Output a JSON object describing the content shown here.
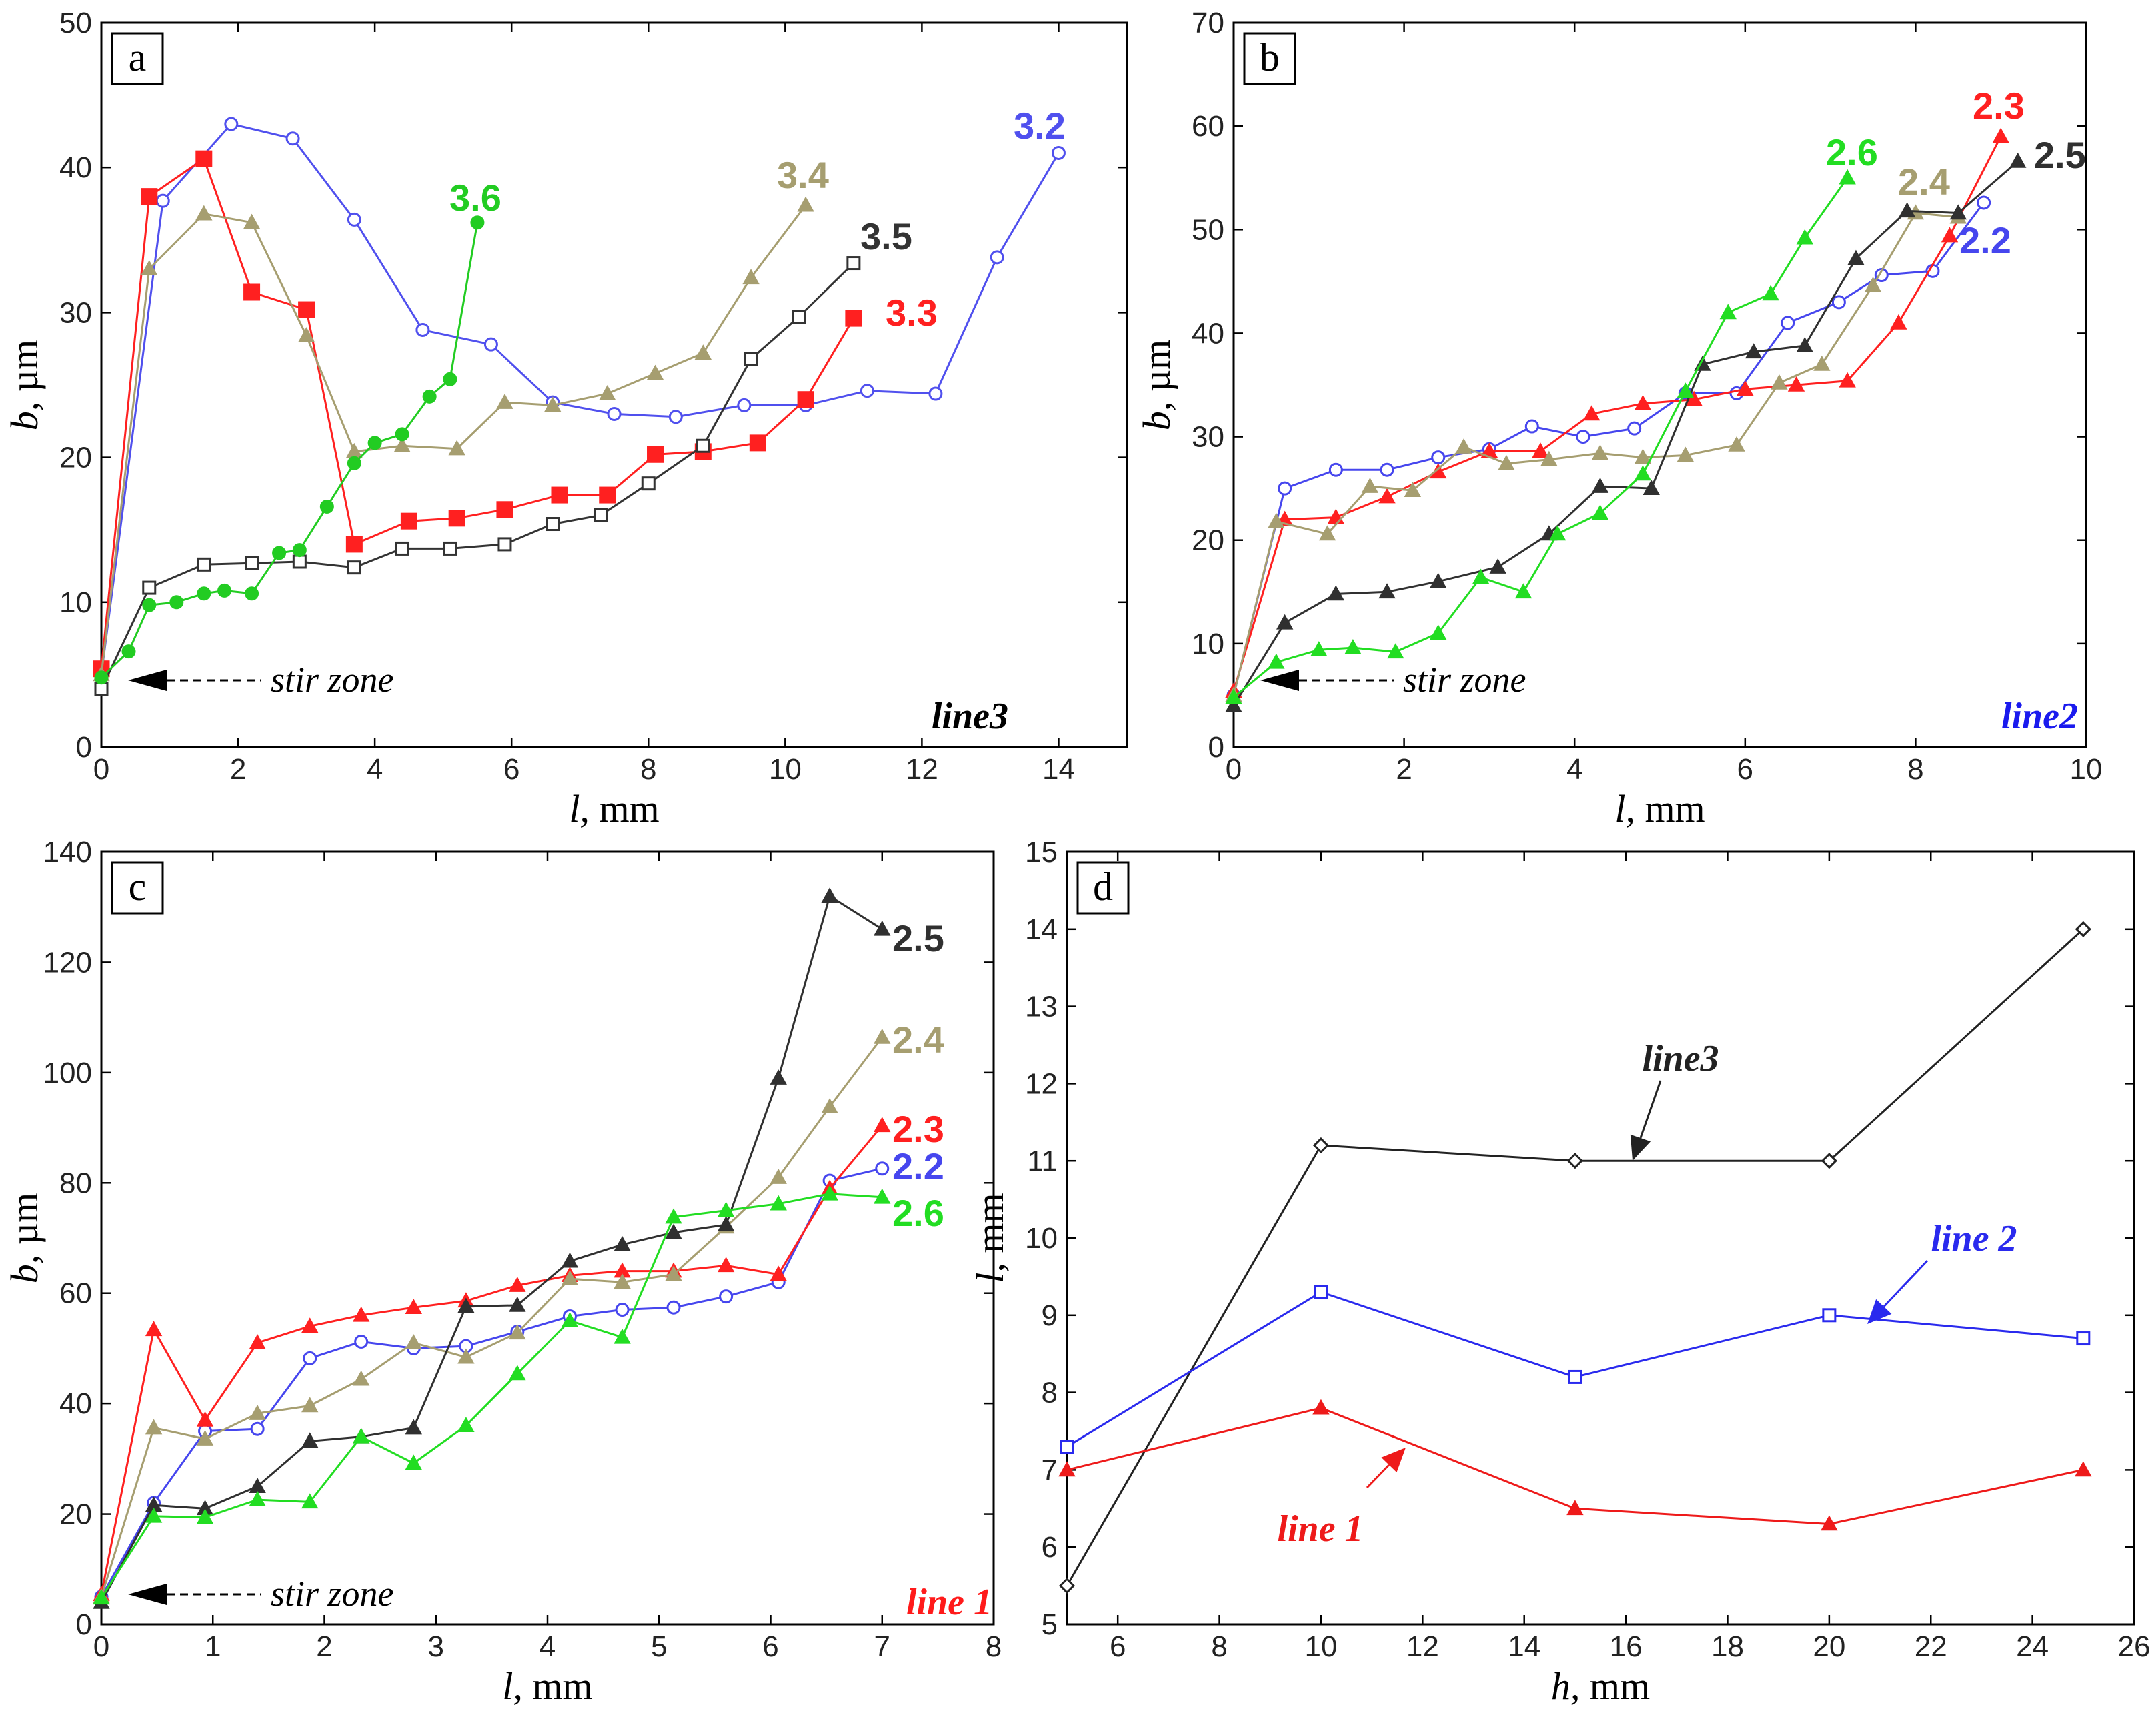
{
  "chart_data": [
    {
      "id": "a",
      "type": "line",
      "panel_letter": "a",
      "xlabel_var": "l,",
      "xlabel_unit": " mm",
      "ylabel_var": "b,",
      "ylabel_unit": " µm",
      "xlim": [
        0,
        15
      ],
      "ylim": [
        0,
        50
      ],
      "xticks": [
        0,
        2,
        4,
        6,
        8,
        10,
        12,
        14
      ],
      "yticks": [
        0,
        10,
        20,
        30,
        40,
        50
      ],
      "line_label": "line3",
      "line_label_color": "#000000",
      "annotation": "stir zone",
      "series": [
        {
          "name": "3.2",
          "color": "#5050ee",
          "marker": "circle-open",
          "x": [
            0,
            0.9,
            1.9,
            2.8,
            3.7,
            4.7,
            5.7,
            6.6,
            7.5,
            8.4,
            9.4,
            10.3,
            11.2,
            12.2,
            13.1,
            14.0
          ],
          "y": [
            5,
            37.7,
            43,
            42,
            36.4,
            28.8,
            27.8,
            23.8,
            23,
            22.8,
            23.6,
            23.6,
            24.6,
            24.4,
            33.8,
            41
          ]
        },
        {
          "name": "3.3",
          "color": "#ff2020",
          "marker": "square-filled",
          "x": [
            0,
            0.7,
            1.5,
            2.2,
            3.0,
            3.7,
            4.5,
            5.2,
            5.9,
            6.7,
            7.4,
            8.1,
            8.8,
            9.6,
            10.3,
            11.0
          ],
          "y": [
            5.4,
            38,
            40.6,
            31.4,
            30.2,
            14,
            15.6,
            15.8,
            16.4,
            17.4,
            17.4,
            20.2,
            20.4,
            21,
            24,
            29.6
          ]
        },
        {
          "name": "3.4",
          "color": "#a69e70",
          "marker": "triangle-filled",
          "x": [
            0,
            0.7,
            1.5,
            2.2,
            3.0,
            3.7,
            4.4,
            5.2,
            5.9,
            6.6,
            7.4,
            8.1,
            8.8,
            9.5,
            10.3
          ],
          "y": [
            5,
            33,
            36.8,
            36.2,
            28.4,
            20.4,
            20.8,
            20.6,
            23.8,
            23.6,
            24.4,
            25.8,
            27.2,
            32.4,
            37.4
          ]
        },
        {
          "name": "3.5",
          "color": "#333333",
          "marker": "square-open",
          "x": [
            0,
            0.7,
            1.5,
            2.2,
            2.9,
            3.7,
            4.4,
            5.1,
            5.9,
            6.6,
            7.3,
            8.0,
            8.8,
            9.5,
            10.2,
            11.0
          ],
          "y": [
            4,
            11,
            12.6,
            12.7,
            12.8,
            12.4,
            13.7,
            13.7,
            14,
            15.4,
            16,
            18.2,
            20.8,
            26.8,
            29.7,
            33.4
          ]
        },
        {
          "name": "3.6",
          "color": "#22cc22",
          "marker": "circle-filled",
          "x": [
            0,
            0.4,
            0.7,
            1.1,
            1.5,
            1.8,
            2.2,
            2.6,
            2.9,
            3.3,
            3.7,
            4.0,
            4.4,
            4.8,
            5.1,
            5.5
          ],
          "y": [
            4.8,
            6.6,
            9.8,
            10,
            10.6,
            10.8,
            10.6,
            13.4,
            13.6,
            16.6,
            19.6,
            21,
            21.6,
            24.2,
            25.4,
            36.2
          ]
        }
      ]
    },
    {
      "id": "b",
      "type": "line",
      "panel_letter": "b",
      "xlabel_var": "l,",
      "xlabel_unit": " mm",
      "ylabel_var": "b,",
      "ylabel_unit": " µm",
      "xlim": [
        0,
        10
      ],
      "ylim": [
        0,
        70
      ],
      "xticks": [
        0,
        2,
        4,
        6,
        8,
        10
      ],
      "yticks": [
        0,
        10,
        20,
        30,
        40,
        50,
        60,
        70
      ],
      "line_label": "line2",
      "line_label_color": "#1a1aee",
      "annotation": "stir zone",
      "series": [
        {
          "name": "2.2",
          "color": "#4646ee",
          "marker": "circle-open",
          "x": [
            0,
            0.6,
            1.2,
            1.8,
            2.4,
            3.0,
            3.5,
            4.1,
            4.7,
            5.3,
            5.9,
            6.5,
            7.1,
            7.6,
            8.2,
            8.8
          ],
          "y": [
            5,
            25,
            26.8,
            26.8,
            28,
            28.8,
            31,
            30,
            30.8,
            34.2,
            34.2,
            41,
            43,
            45.6,
            46,
            52.6
          ]
        },
        {
          "name": "2.3",
          "color": "#ff2020",
          "marker": "triangle-filled",
          "x": [
            0,
            0.6,
            1.2,
            1.8,
            2.4,
            3.0,
            3.6,
            4.2,
            4.8,
            5.4,
            6.0,
            6.6,
            7.2,
            7.8,
            8.4,
            9.0
          ],
          "y": [
            5.4,
            22,
            22.2,
            24.2,
            26.6,
            28.6,
            28.6,
            32.2,
            33.2,
            33.6,
            34.6,
            35,
            35.4,
            41,
            49.4,
            59
          ]
        },
        {
          "name": "2.4",
          "color": "#a69e70",
          "marker": "triangle-filled",
          "x": [
            0,
            0.5,
            1.1,
            1.6,
            2.1,
            2.7,
            3.2,
            3.7,
            4.3,
            4.8,
            5.3,
            5.9,
            6.4,
            6.9,
            7.5,
            8.0,
            8.5
          ],
          "y": [
            5,
            21.8,
            20.6,
            25.2,
            24.8,
            29,
            27.4,
            27.8,
            28.4,
            28,
            28.2,
            29.2,
            35.2,
            37,
            44.6,
            51.6,
            51.2
          ]
        },
        {
          "name": "2.5",
          "color": "#303030",
          "marker": "triangle-filled",
          "x": [
            0,
            0.6,
            1.2,
            1.8,
            2.4,
            3.1,
            3.7,
            4.3,
            4.9,
            5.5,
            6.1,
            6.7,
            7.3,
            7.9,
            8.5,
            9.2
          ],
          "y": [
            4,
            12,
            14.8,
            15,
            16,
            17.4,
            20.6,
            25.2,
            25,
            37,
            38.2,
            38.8,
            47.2,
            51.8,
            51.6,
            56.6
          ]
        },
        {
          "name": "2.6",
          "color": "#22dd22",
          "marker": "triangle-filled",
          "x": [
            0,
            0.5,
            1.0,
            1.4,
            1.9,
            2.4,
            2.9,
            3.4,
            3.8,
            4.3,
            4.8,
            5.3,
            5.8,
            6.3,
            6.7,
            7.2
          ],
          "y": [
            4.8,
            8.2,
            9.4,
            9.6,
            9.2,
            11,
            16.4,
            15,
            20.6,
            22.6,
            26.4,
            34.4,
            42,
            43.8,
            49.2,
            55
          ]
        }
      ]
    },
    {
      "id": "c",
      "type": "line",
      "panel_letter": "c",
      "xlabel_var": "l,",
      "xlabel_unit": " mm",
      "ylabel_var": "b,",
      "ylabel_unit": " µm",
      "xlim": [
        0,
        8
      ],
      "ylim": [
        0,
        140
      ],
      "xticks": [
        0,
        1,
        2,
        3,
        4,
        5,
        6,
        7,
        8
      ],
      "yticks": [
        0,
        20,
        40,
        60,
        80,
        100,
        120,
        140
      ],
      "line_label": "line 1",
      "line_label_color": "#ff1a1a",
      "annotation": "stir zone",
      "series": [
        {
          "name": "2.2",
          "color": "#4646ee",
          "marker": "circle-open",
          "x": [
            0,
            0.47,
            0.93,
            1.4,
            1.87,
            2.33,
            2.8,
            3.27,
            3.73,
            4.2,
            4.67,
            5.13,
            5.6,
            6.07,
            6.53,
            7.0
          ],
          "y": [
            5,
            22,
            35,
            35.4,
            48.2,
            51.2,
            50,
            50.4,
            53,
            55.8,
            57,
            57.4,
            59.4,
            62,
            80.4,
            82.6
          ]
        },
        {
          "name": "2.3",
          "color": "#ff2020",
          "marker": "triangle-filled",
          "x": [
            0,
            0.47,
            0.93,
            1.4,
            1.87,
            2.33,
            2.8,
            3.27,
            3.73,
            4.2,
            4.67,
            5.13,
            5.6,
            6.07,
            6.53,
            7.0
          ],
          "y": [
            5.4,
            53.4,
            37,
            51,
            54,
            56,
            57.4,
            58.6,
            61.4,
            63.2,
            64,
            64,
            65,
            63.4,
            79,
            90.4
          ]
        },
        {
          "name": "2.4",
          "color": "#a69e70",
          "marker": "triangle-filled",
          "x": [
            0,
            0.47,
            0.93,
            1.4,
            1.87,
            2.33,
            2.8,
            3.27,
            3.73,
            4.2,
            4.67,
            5.13,
            5.6,
            6.07,
            6.53,
            7.0
          ],
          "y": [
            5,
            35.6,
            33.6,
            38.2,
            39.6,
            44.4,
            51,
            48.4,
            52.8,
            62.6,
            62,
            63.4,
            72,
            81,
            93.8,
            106.4
          ]
        },
        {
          "name": "2.5",
          "color": "#303030",
          "marker": "triangle-filled",
          "x": [
            0,
            0.47,
            0.93,
            1.4,
            1.87,
            2.33,
            2.8,
            3.27,
            3.73,
            4.2,
            4.67,
            5.13,
            5.6,
            6.07,
            6.53,
            7.0
          ],
          "y": [
            4,
            21.6,
            21,
            25,
            33.2,
            34,
            35.6,
            57.6,
            57.8,
            65.8,
            68.8,
            71,
            72.4,
            99,
            132,
            126
          ]
        },
        {
          "name": "2.6",
          "color": "#22dd22",
          "marker": "triangle-filled",
          "x": [
            0,
            0.47,
            0.93,
            1.4,
            1.87,
            2.33,
            2.8,
            3.27,
            3.73,
            4.2,
            4.67,
            5.13,
            5.6,
            6.07,
            6.53,
            7.0
          ],
          "y": [
            4.8,
            19.6,
            19.4,
            22.6,
            22.2,
            34,
            29.2,
            36,
            45.4,
            55,
            52,
            73.8,
            75,
            76.2,
            78,
            77.4
          ]
        }
      ]
    },
    {
      "id": "d",
      "type": "line",
      "panel_letter": "d",
      "xlabel_var": "h,",
      "xlabel_unit": " mm",
      "ylabel_var": "l,",
      "ylabel_unit": " mm",
      "xlim": [
        5,
        26
      ],
      "ylim": [
        5,
        15
      ],
      "xticks": [
        6,
        8,
        10,
        12,
        14,
        16,
        18,
        20,
        22,
        24,
        26
      ],
      "yticks": [
        5,
        6,
        7,
        8,
        9,
        10,
        11,
        12,
        13,
        14,
        15
      ],
      "series": [
        {
          "name": "line3",
          "color": "#222222",
          "marker": "diamond-open",
          "x": [
            5,
            10,
            15,
            20,
            25
          ],
          "y": [
            5.5,
            11.2,
            11,
            11,
            14
          ]
        },
        {
          "name": "line 2",
          "color": "#2a2aee",
          "marker": "square-open",
          "x": [
            5,
            10,
            15,
            20,
            25
          ],
          "y": [
            7.3,
            9.3,
            8.2,
            9,
            8.7
          ]
        },
        {
          "name": "line 1",
          "color": "#ee1a1a",
          "marker": "triangle-filled",
          "x": [
            5,
            10,
            15,
            20,
            25
          ],
          "y": [
            7,
            7.8,
            6.5,
            6.3,
            7
          ]
        }
      ]
    }
  ]
}
